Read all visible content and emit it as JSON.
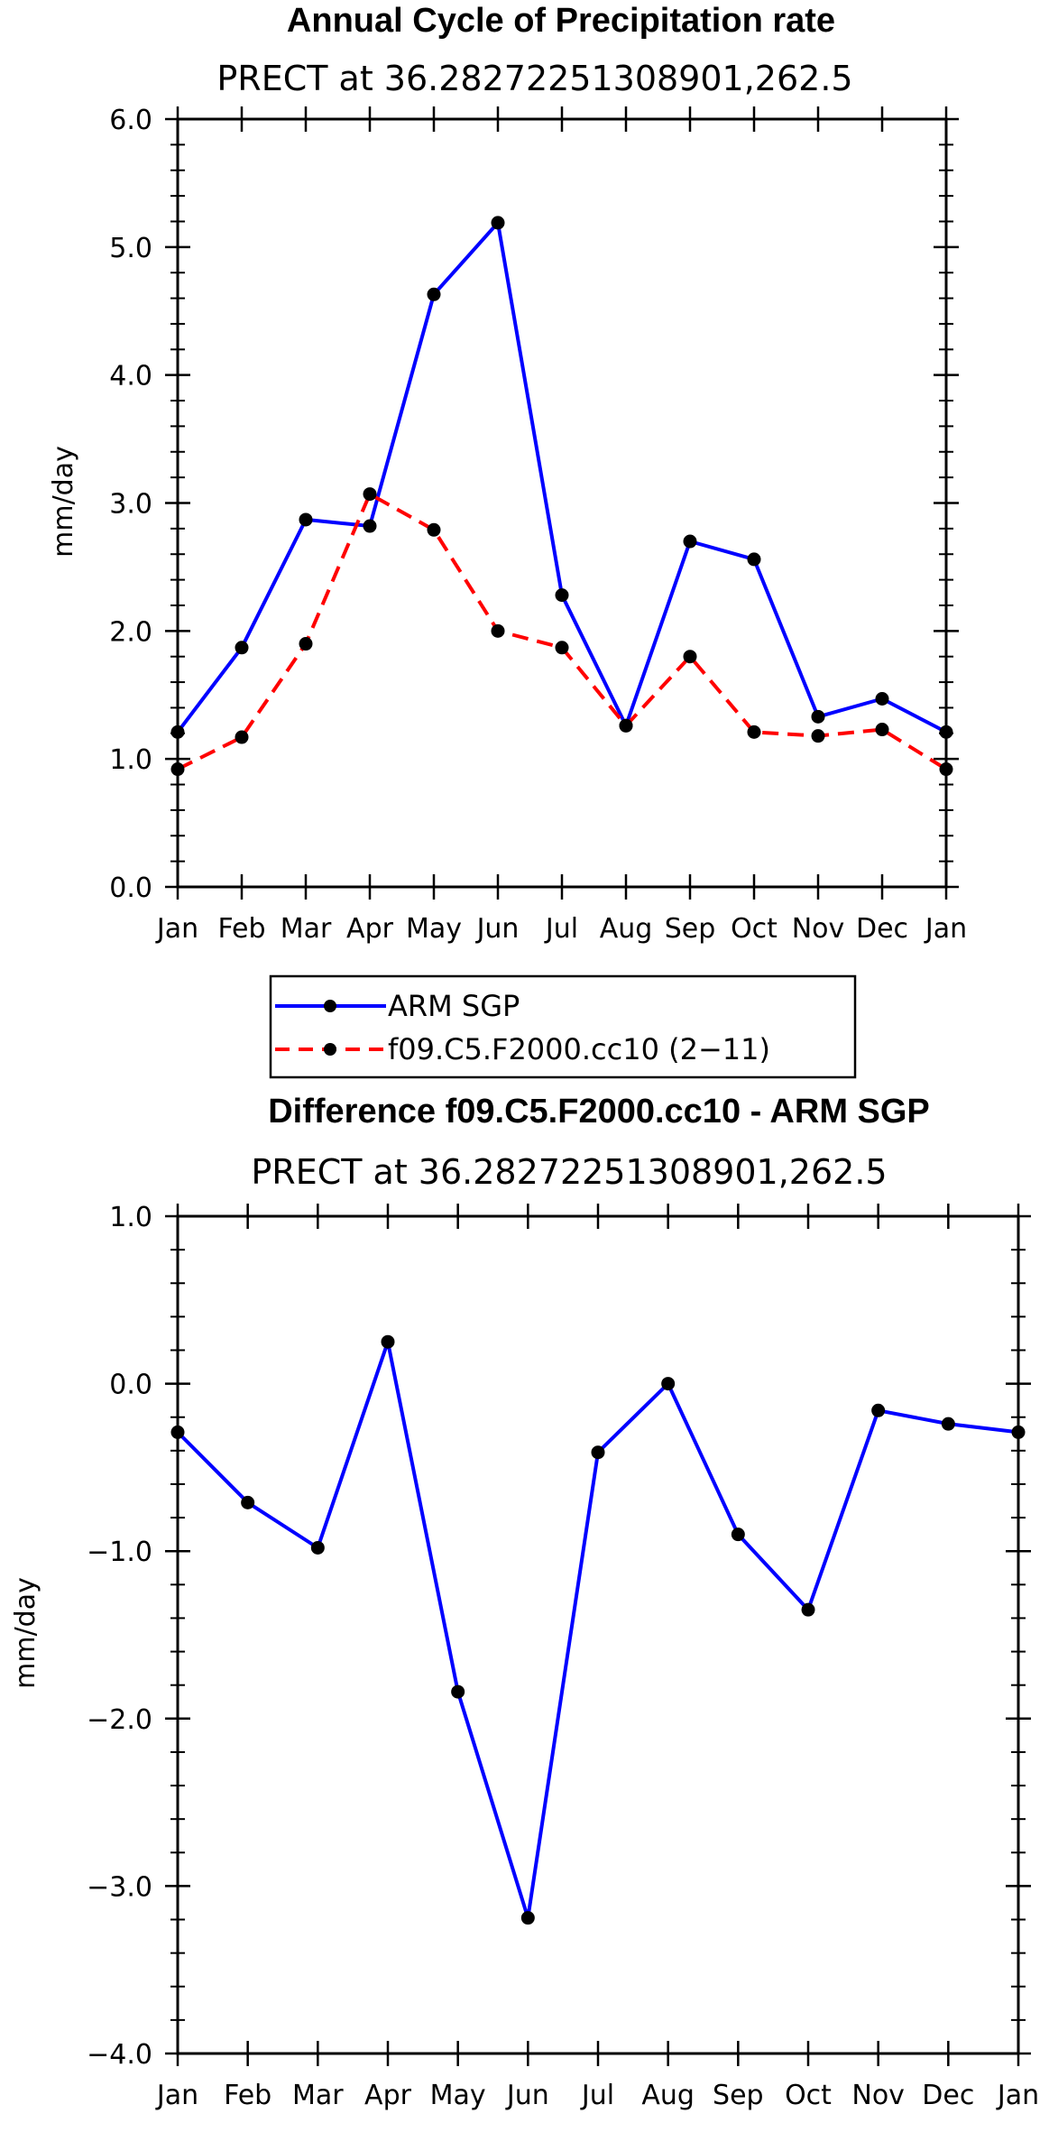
{
  "colors": {
    "obs": "#0000ff",
    "model": "#ff0000",
    "marker": "#000000",
    "axis": "#000000"
  },
  "chart_data": [
    {
      "type": "line",
      "title": "Annual Cycle of Precipitation rate",
      "subtitle": "PRECT at 36.28272251308901,262.5",
      "xlabel": "",
      "ylabel": "mm/day",
      "categories": [
        "Jan",
        "Feb",
        "Mar",
        "Apr",
        "May",
        "Jun",
        "Jul",
        "Aug",
        "Sep",
        "Oct",
        "Nov",
        "Dec",
        "Jan"
      ],
      "ylim": [
        0.0,
        6.0
      ],
      "yticks": [
        0.0,
        1.0,
        2.0,
        3.0,
        4.0,
        5.0,
        6.0
      ],
      "ytick_labels": [
        "0.0",
        "1.0",
        "2.0",
        "3.0",
        "4.0",
        "5.0",
        "6.0"
      ],
      "series": [
        {
          "name": "ARM SGP",
          "style": "solid",
          "color": "#0000ff",
          "values": [
            1.21,
            1.87,
            2.87,
            2.82,
            4.63,
            5.19,
            2.28,
            1.26,
            2.7,
            2.56,
            1.33,
            1.47,
            1.21
          ]
        },
        {
          "name": "f09.C5.F2000.cc10 (2−11)",
          "style": "dashed",
          "color": "#ff0000",
          "values": [
            0.92,
            1.17,
            1.9,
            3.07,
            2.79,
            2.0,
            1.87,
            1.26,
            1.8,
            1.21,
            1.18,
            1.23,
            0.92
          ]
        }
      ],
      "legend": {
        "placement": "bottom-center"
      }
    },
    {
      "type": "line",
      "title": "Difference f09.C5.F2000.cc10 - ARM SGP",
      "subtitle": "PRECT at 36.28272251308901,262.5",
      "xlabel": "",
      "ylabel": "mm/day",
      "categories": [
        "Jan",
        "Feb",
        "Mar",
        "Apr",
        "May",
        "Jun",
        "Jul",
        "Aug",
        "Sep",
        "Oct",
        "Nov",
        "Dec",
        "Jan"
      ],
      "ylim": [
        -4.0,
        1.0
      ],
      "yticks": [
        -4.0,
        -3.0,
        -2.0,
        -1.0,
        0.0,
        1.0
      ],
      "ytick_labels": [
        "−4.0",
        "−3.0",
        "−2.0",
        "−1.0",
        "0.0",
        "1.0"
      ],
      "series": [
        {
          "name": "Difference",
          "style": "solid",
          "color": "#0000ff",
          "values": [
            -0.29,
            -0.71,
            -0.98,
            0.25,
            -1.84,
            -3.19,
            -0.41,
            0.0,
            -0.9,
            -1.35,
            -0.16,
            -0.24,
            -0.29
          ]
        }
      ]
    }
  ]
}
